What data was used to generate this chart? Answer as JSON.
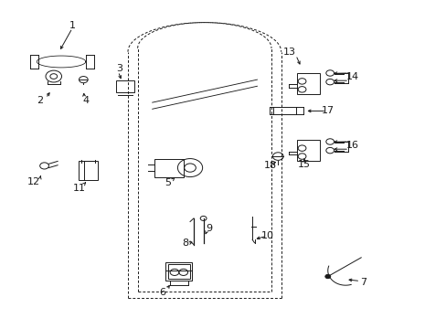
{
  "bg_color": "#ffffff",
  "line_color": "#1a1a1a",
  "fig_width": 4.89,
  "fig_height": 3.6,
  "dpi": 100,
  "door": {
    "ox": 0.295,
    "oy": 0.08,
    "ow": 0.33,
    "oh": 0.83,
    "cr": 0.1
  },
  "parts": {
    "label_fontsize": 8.0
  }
}
